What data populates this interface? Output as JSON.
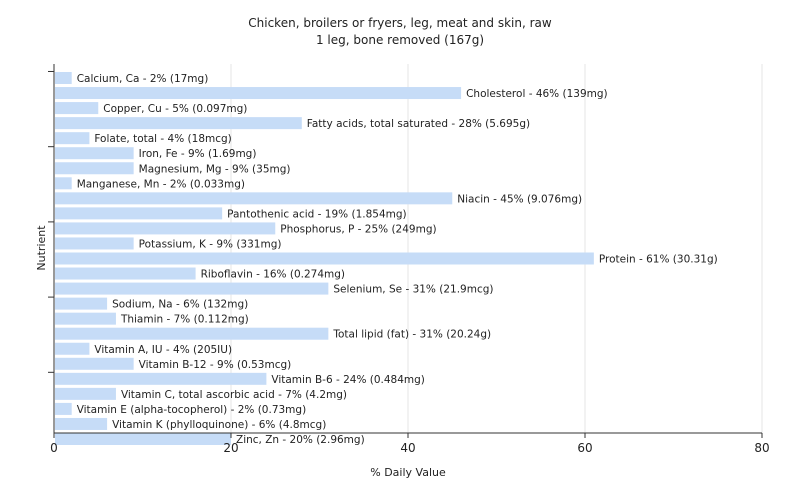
{
  "chart_data": {
    "type": "bar",
    "orientation": "horizontal",
    "title": "Chicken, broilers or fryers, leg, meat and skin, raw",
    "subtitle": "1 leg, bone removed (167g)",
    "xlabel": "% Daily Value",
    "ylabel": "Nutrient",
    "xlim": [
      0,
      80
    ],
    "xticks": [
      0,
      20,
      40,
      60,
      80
    ],
    "grid": true,
    "bar_color": "#c6dcf7",
    "categories": [
      "Calcium, Ca",
      "Cholesterol",
      "Copper, Cu",
      "Fatty acids, total saturated",
      "Folate, total",
      "Iron, Fe",
      "Magnesium, Mg",
      "Manganese, Mn",
      "Niacin",
      "Pantothenic acid",
      "Phosphorus, P",
      "Potassium, K",
      "Protein",
      "Riboflavin",
      "Selenium, Se",
      "Sodium, Na",
      "Thiamin",
      "Total lipid (fat)",
      "Vitamin A, IU",
      "Vitamin B-12",
      "Vitamin B-6",
      "Vitamin C, total ascorbic acid",
      "Vitamin E (alpha-tocopherol)",
      "Vitamin K (phylloquinone)",
      "Zinc, Zn"
    ],
    "values": [
      2,
      46,
      5,
      28,
      4,
      9,
      9,
      2,
      45,
      19,
      25,
      9,
      61,
      16,
      31,
      6,
      7,
      31,
      4,
      9,
      24,
      7,
      2,
      6,
      20
    ],
    "labels": [
      "Calcium, Ca - 2% (17mg)",
      "Cholesterol - 46% (139mg)",
      "Copper, Cu - 5% (0.097mg)",
      "Fatty acids, total saturated - 28% (5.695g)",
      "Folate, total - 4% (18mcg)",
      "Iron, Fe - 9% (1.69mg)",
      "Magnesium, Mg - 9% (35mg)",
      "Manganese, Mn - 2% (0.033mg)",
      "Niacin - 45% (9.076mg)",
      "Pantothenic acid - 19% (1.854mg)",
      "Phosphorus, P - 25% (249mg)",
      "Potassium, K - 9% (331mg)",
      "Protein - 61% (30.31g)",
      "Riboflavin - 16% (0.274mg)",
      "Selenium, Se - 31% (21.9mcg)",
      "Sodium, Na - 6% (132mg)",
      "Thiamin - 7% (0.112mg)",
      "Total lipid (fat) - 31% (20.24g)",
      "Vitamin A, IU - 4% (205IU)",
      "Vitamin B-12 - 9% (0.53mcg)",
      "Vitamin B-6 - 24% (0.484mg)",
      "Vitamin C, total ascorbic acid - 7% (4.2mg)",
      "Vitamin E (alpha-tocopherol) - 2% (0.73mg)",
      "Vitamin K (phylloquinone) - 6% (4.8mcg)",
      "Zinc, Zn - 20% (2.96mg)"
    ]
  }
}
